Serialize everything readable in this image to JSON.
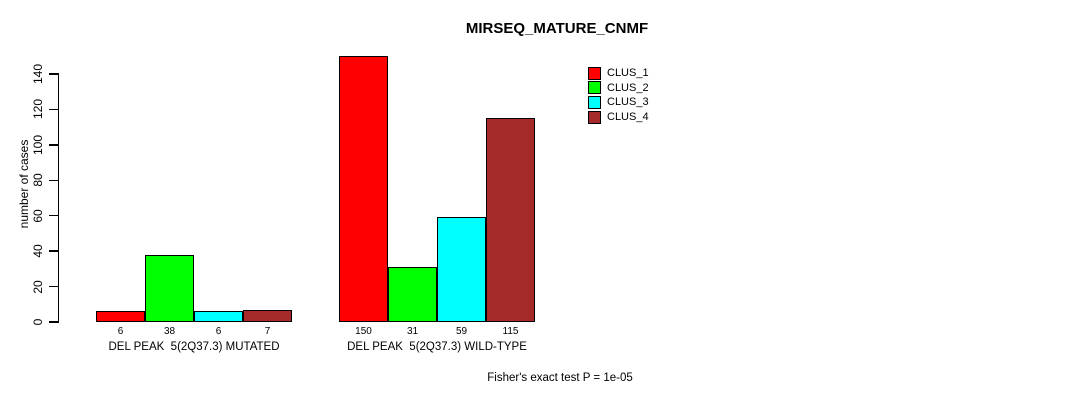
{
  "chart_data": {
    "type": "bar",
    "title": "MIRSEQ_MATURE_CNMF",
    "ylabel": "number of cases",
    "xlabel": "",
    "ylim": [
      0,
      140
    ],
    "yticks": [
      0,
      20,
      40,
      60,
      80,
      100,
      120,
      140
    ],
    "grid": false,
    "legend_position": "top-right",
    "bar_borders": "#000000",
    "series": [
      {
        "name": "CLUS_1",
        "color": "#FF0000"
      },
      {
        "name": "CLUS_2",
        "color": "#00FF00"
      },
      {
        "name": "CLUS_3",
        "color": "#00FFFF"
      },
      {
        "name": "CLUS_4",
        "color": "#A52A2A"
      }
    ],
    "groups": [
      {
        "category": "DEL PEAK  5(2Q37.3) MUTATED",
        "values": [
          6,
          38,
          6,
          7
        ]
      },
      {
        "category": "DEL PEAK  5(2Q37.3) WILD-TYPE",
        "values": [
          150,
          31,
          59,
          115
        ]
      }
    ],
    "annotation": "Fisher's exact test P = 1e-05"
  }
}
